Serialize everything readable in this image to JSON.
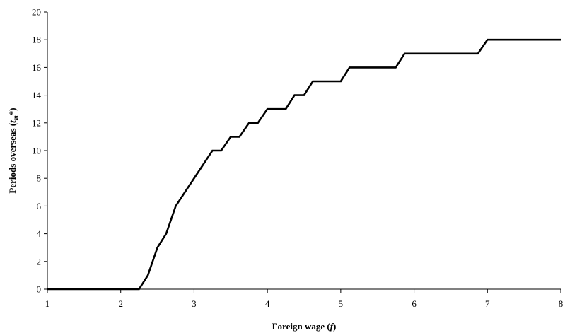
{
  "chart_data": {
    "type": "line",
    "title": "",
    "xlabel": {
      "main": "Foreign wage (",
      "var": "f",
      "close": ")"
    },
    "ylabel": {
      "main": "Periods overseas (",
      "var": "t",
      "sub": "m",
      "rest": "*)"
    },
    "xlim": [
      1,
      8
    ],
    "ylim": [
      0,
      20
    ],
    "x_ticks": [
      1,
      2,
      3,
      4,
      5,
      6,
      7,
      8
    ],
    "y_ticks": [
      0,
      2,
      4,
      6,
      8,
      10,
      12,
      14,
      16,
      18,
      20
    ],
    "grid": false,
    "legend": "none",
    "line_color": "#000000",
    "series": [
      {
        "x": [
          1,
          2.25,
          2.37,
          2.5,
          2.62,
          2.75,
          3.25,
          3.37,
          3.5,
          3.62,
          3.75,
          3.87,
          4.0,
          4.25,
          4.37,
          4.5,
          4.62,
          5.0,
          5.12,
          5.75,
          5.87,
          6.87,
          7.0,
          8.0
        ],
        "y": [
          0,
          0,
          1,
          3,
          4,
          6,
          10,
          10,
          11,
          11,
          12,
          12,
          13,
          13,
          14,
          14,
          15,
          15,
          16,
          16,
          17,
          17,
          18,
          18
        ]
      }
    ]
  }
}
